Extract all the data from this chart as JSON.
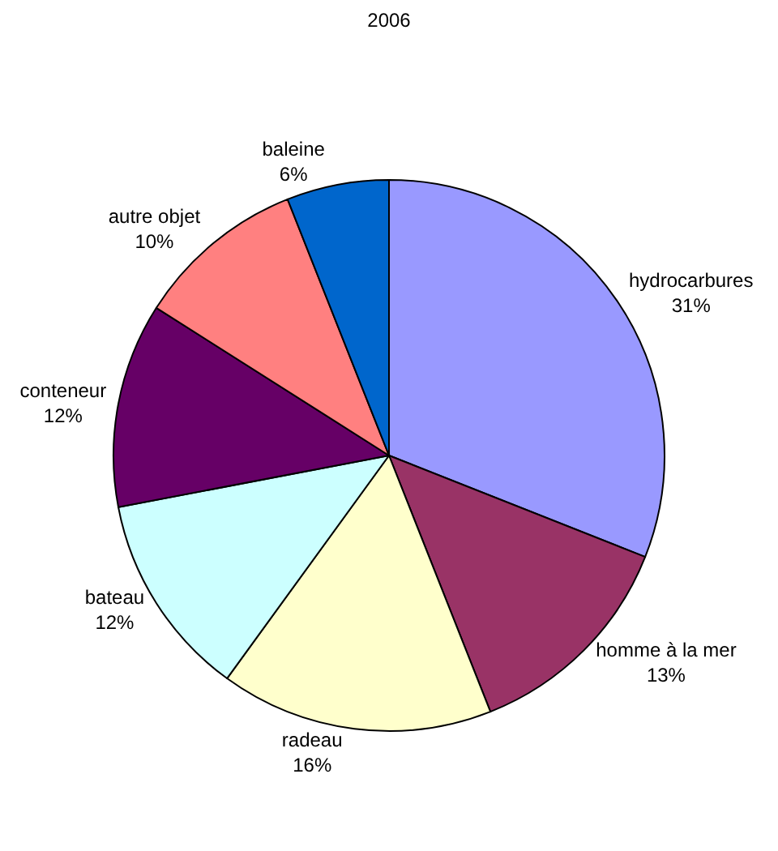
{
  "chart_data": {
    "type": "pie",
    "title": "2006",
    "categories": [
      "hydrocarbures",
      "homme à la mer",
      "radeau",
      "bateau",
      "conteneur",
      "autre objet",
      "baleine"
    ],
    "values": [
      31,
      13,
      16,
      12,
      12,
      10,
      6
    ],
    "value_labels": [
      "31%",
      "13%",
      "16%",
      "12%",
      "12%",
      "10%",
      "6%"
    ],
    "colors": [
      "#9999ff",
      "#993366",
      "#ffffcc",
      "#ccffff",
      "#660066",
      "#ff8080",
      "#0066cc"
    ],
    "legend": false
  }
}
